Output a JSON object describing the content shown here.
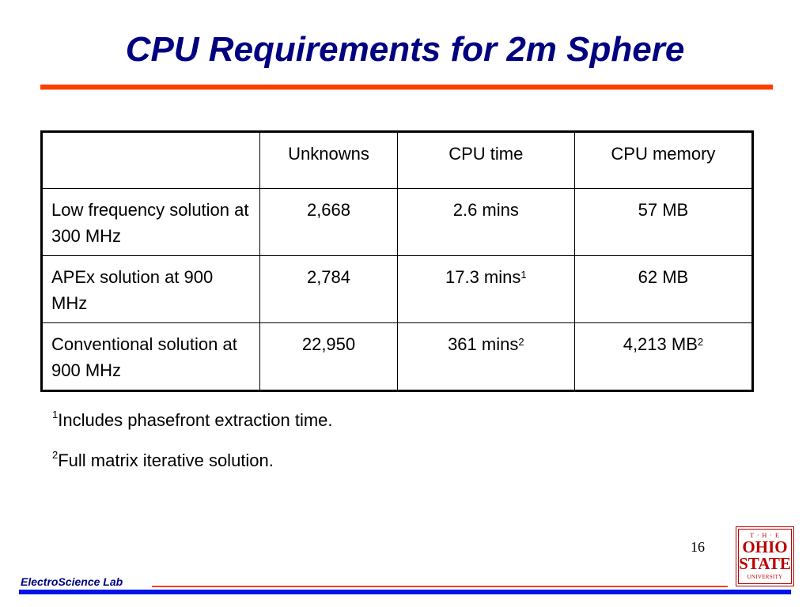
{
  "slide": {
    "title": "CPU Requirements for 2m Sphere",
    "page_number": "16"
  },
  "table": {
    "headers": [
      "",
      "Unknowns",
      "CPU time",
      "CPU memory"
    ],
    "rows": [
      {
        "label": "Low frequency solution at 300 MHz",
        "unknowns": "2,668",
        "cpu_time": "2.6 mins",
        "cpu_time_note": "",
        "cpu_memory": "57 MB",
        "cpu_memory_note": ""
      },
      {
        "label": "APEx solution at 900 MHz",
        "unknowns": "2,784",
        "cpu_time": "17.3 mins",
        "cpu_time_note": "1",
        "cpu_memory": "62 MB",
        "cpu_memory_note": ""
      },
      {
        "label": "Conventional solution at 900 MHz",
        "unknowns": "22,950",
        "cpu_time": "361 mins",
        "cpu_time_note": "2",
        "cpu_memory": "4,213 MB",
        "cpu_memory_note": "2"
      }
    ]
  },
  "footnotes": [
    {
      "marker": "1",
      "text": "Includes phasefront extraction time."
    },
    {
      "marker": "2",
      "text": "Full matrix iterative solution."
    }
  ],
  "footer": {
    "lab_name": "ElectroScience Lab"
  },
  "logo": {
    "line_the": "T · H · E",
    "line_ohio": "OHIO",
    "line_state": "STATE",
    "line_university": "UNIVERSITY"
  },
  "colors": {
    "title": "#000080",
    "accent_rule": "#ff3d00",
    "footer_bar": "#0014e6",
    "logo": "#bb0000"
  }
}
